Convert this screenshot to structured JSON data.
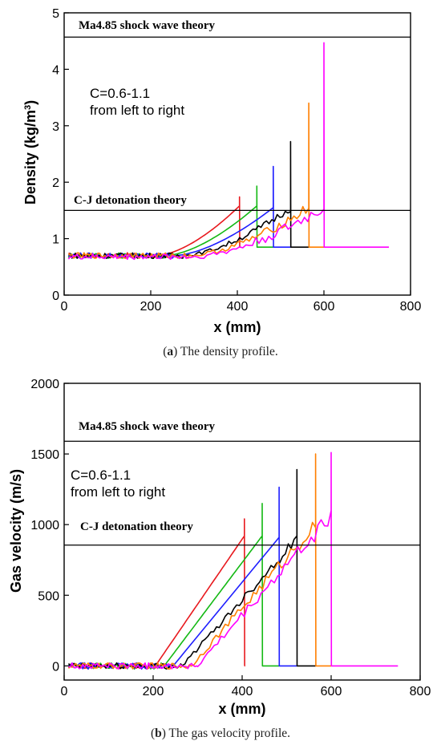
{
  "colors": {
    "series": [
      "#e8191e",
      "#14b914",
      "#1e1eff",
      "#000000",
      "#ff7f00",
      "#ff00ff"
    ]
  },
  "chart_data": [
    {
      "type": "line",
      "panel": "a",
      "xlabel": "x (mm)",
      "ylabel": "Density (kg/m3)",
      "xlim": [
        0,
        800
      ],
      "ylim": [
        0,
        5
      ],
      "xticks": [
        "0",
        "200",
        "400",
        "600",
        "800"
      ],
      "yticks": [
        "0",
        "1",
        "2",
        "3",
        "4",
        "5"
      ],
      "annotation": [
        "C=0.6-1.1",
        "from left to right"
      ],
      "hlines": [
        {
          "label": "Ma4.85 shock wave theory",
          "y": 4.57
        },
        {
          "label": "C-J detonation theory",
          "y": 1.5
        }
      ],
      "series": [
        {
          "color_index": 0,
          "C": 0.6,
          "base": 0.7,
          "ramp_start": 215,
          "front": 405,
          "pre_peak": 1.58,
          "spike": 1.74,
          "post": 0.85,
          "end_x": 405,
          "noise": 0
        },
        {
          "color_index": 1,
          "C": 0.7,
          "base": 0.7,
          "ramp_start": 235,
          "front": 445,
          "pre_peak": 1.58,
          "spike": 1.93,
          "post": 0.85,
          "end_x": 483,
          "noise": 0
        },
        {
          "color_index": 2,
          "C": 0.8,
          "base": 0.7,
          "ramp_start": 255,
          "front": 483,
          "pre_peak": 1.55,
          "spike": 2.28,
          "post": 0.85,
          "end_x": 523,
          "noise": 0
        },
        {
          "color_index": 3,
          "C": 0.9,
          "base": 0.7,
          "ramp_start": 275,
          "front": 523,
          "pre_peak": 1.55,
          "spike": 2.72,
          "post": 0.85,
          "end_x": 565,
          "noise": 0.05
        },
        {
          "color_index": 4,
          "C": 1.0,
          "base": 0.7,
          "ramp_start": 290,
          "front": 565,
          "pre_peak": 1.55,
          "spike": 3.4,
          "post": 0.85,
          "end_x": 600,
          "noise": 0.07
        },
        {
          "color_index": 5,
          "C": 1.1,
          "base": 0.68,
          "ramp_start": 300,
          "front": 600,
          "pre_peak": 1.55,
          "spike": 4.47,
          "post": 0.85,
          "end_x": 750,
          "noise": 0.09
        }
      ]
    },
    {
      "type": "line",
      "panel": "b",
      "xlabel": "x (mm)",
      "ylabel": "Gas velocity (m/s)",
      "xlim": [
        0,
        800
      ],
      "ylim": [
        -100,
        2000
      ],
      "xticks": [
        "0",
        "200",
        "400",
        "600",
        "800"
      ],
      "yticks": [
        "0",
        "500",
        "1000",
        "1500",
        "2000"
      ],
      "annotation": [
        "C=0.6-1.1",
        "from left to right"
      ],
      "hlines": [
        {
          "label": "Ma4.85 shock wave theory",
          "y": 1590
        },
        {
          "label": "C-J detonation theory",
          "y": 855
        }
      ],
      "series": [
        {
          "color_index": 0,
          "C": 0.6,
          "base": 0,
          "ramp_start": 205,
          "front": 405,
          "pre_peak": 920,
          "spike": 1040,
          "post": 0,
          "end_x": 405,
          "noise": 0
        },
        {
          "color_index": 1,
          "C": 0.7,
          "base": 0,
          "ramp_start": 225,
          "front": 445,
          "pre_peak": 920,
          "spike": 1150,
          "post": 0,
          "end_x": 483,
          "noise": 0
        },
        {
          "color_index": 2,
          "C": 0.8,
          "base": 0,
          "ramp_start": 245,
          "front": 483,
          "pre_peak": 910,
          "spike": 1265,
          "post": 0,
          "end_x": 523,
          "noise": 0
        },
        {
          "color_index": 3,
          "C": 0.9,
          "base": 0,
          "ramp_start": 265,
          "front": 523,
          "pre_peak": 900,
          "spike": 1390,
          "post": 0,
          "end_x": 565,
          "noise": 30
        },
        {
          "color_index": 4,
          "C": 1.0,
          "base": 0,
          "ramp_start": 285,
          "front": 565,
          "pre_peak": 1000,
          "spike": 1500,
          "post": 0,
          "end_x": 600,
          "noise": 40
        },
        {
          "color_index": 5,
          "C": 1.1,
          "base": 0,
          "ramp_start": 300,
          "front": 600,
          "pre_peak": 1060,
          "spike": 1510,
          "post": 0,
          "end_x": 750,
          "noise": 45
        }
      ]
    }
  ],
  "captions": {
    "a": {
      "letter": "a",
      "text": " The density profile."
    },
    "b": {
      "letter": "b",
      "text": " The gas velocity profile."
    }
  }
}
